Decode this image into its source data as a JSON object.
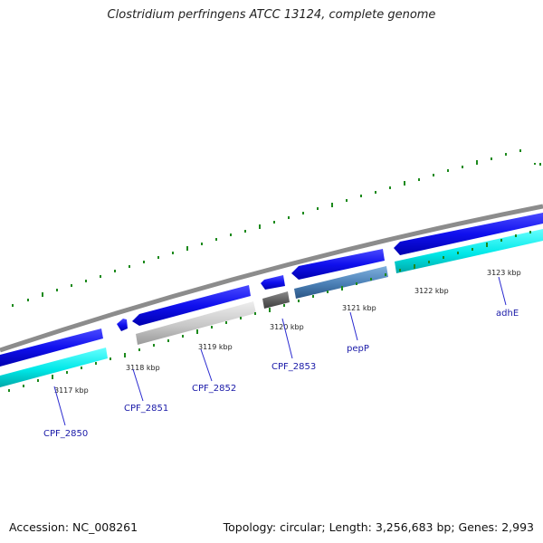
{
  "title": "Clostridium perfringens ATCC 13124, complete genome",
  "footer": {
    "accession": "Accession: NC_008261",
    "summary": "Topology: circular; Length: 3,256,683 bp; Genes: 2,993"
  },
  "colors": {
    "backbone": "#8c8c8c",
    "cds_forward": "#1010e8",
    "tick_marks": "#1d8a1d",
    "label_lines": "#2a2ad0"
  },
  "ticks": [
    {
      "kbp": 3117,
      "label": "3117 kbp"
    },
    {
      "kbp": 3118,
      "label": "3118 kbp"
    },
    {
      "kbp": 3119,
      "label": "3119 kbp"
    },
    {
      "kbp": 3120,
      "label": "3120 kbp"
    },
    {
      "kbp": 3121,
      "label": "3121 kbp"
    },
    {
      "kbp": 3122,
      "label": "3122 kbp"
    },
    {
      "kbp": 3123,
      "label": "3123 kbp"
    }
  ],
  "genes": [
    {
      "name": "CPF_2850"
    },
    {
      "name": "CPF_2851"
    },
    {
      "name": "CPF_2852"
    },
    {
      "name": "CPF_2853"
    },
    {
      "name": "pepP"
    },
    {
      "name": "adhE"
    }
  ]
}
